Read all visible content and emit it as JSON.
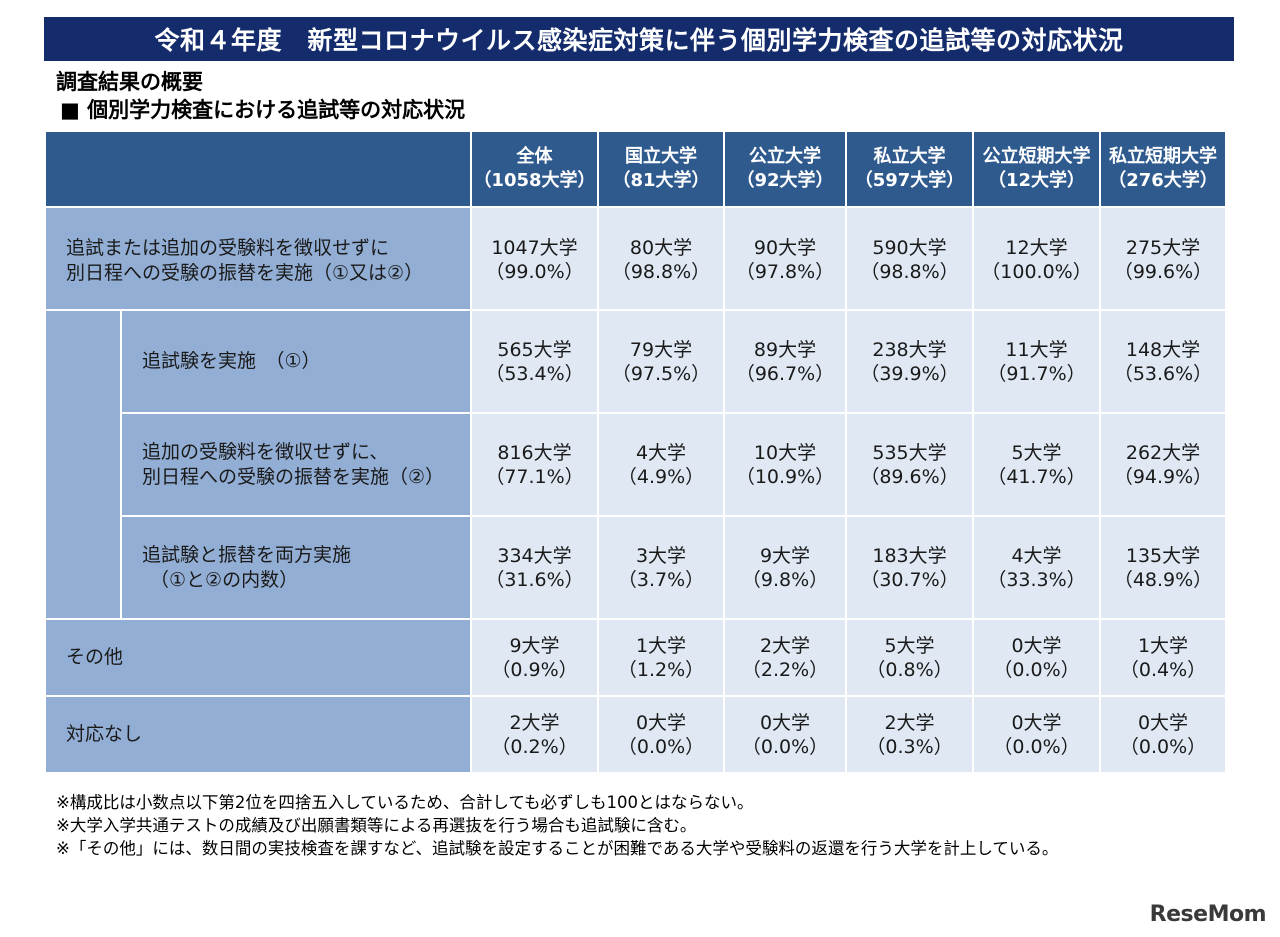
{
  "title": "令和４年度　新型コロナウイルス感染症対策に伴う個別学力検査の追試等の対応状況",
  "section_title": "調査結果の概要",
  "subsection_title": "■ 個別学力検査における追試等の対応状況",
  "table": {
    "headers": [
      {
        "name": "全体",
        "count": "（1058大学）"
      },
      {
        "name": "国立大学",
        "count": "（81大学）"
      },
      {
        "name": "公立大学",
        "count": "（92大学）"
      },
      {
        "name": "私立大学",
        "count": "（597大学）"
      },
      {
        "name": "公立短期大学",
        "count": "（12大学）"
      },
      {
        "name": "私立短期大学",
        "count": "（276大学）"
      }
    ],
    "rows": [
      {
        "label1": "追試または追加の受験料を徴収せずに",
        "label2": "別日程への受験の振替を実施（①又は②）",
        "cells": [
          [
            "1047大学",
            "（99.0%）"
          ],
          [
            "80大学",
            "（98.8%）"
          ],
          [
            "90大学",
            "（97.8%）"
          ],
          [
            "590大学",
            "（98.8%）"
          ],
          [
            "12大学",
            "（100.0%）"
          ],
          [
            "275大学",
            "（99.6%）"
          ]
        ]
      },
      {
        "label1": "追試験を実施　（①）",
        "label2": "",
        "cells": [
          [
            "565大学",
            "（53.4%）"
          ],
          [
            "79大学",
            "（97.5%）"
          ],
          [
            "89大学",
            "（96.7%）"
          ],
          [
            "238大学",
            "（39.9%）"
          ],
          [
            "11大学",
            "（91.7%）"
          ],
          [
            "148大学",
            "（53.6%）"
          ]
        ]
      },
      {
        "label1": "追加の受験料を徴収せずに、",
        "label2": "別日程への受験の振替を実施（②）",
        "cells": [
          [
            "816大学",
            "（77.1%）"
          ],
          [
            "4大学",
            "（4.9%）"
          ],
          [
            "10大学",
            "（10.9%）"
          ],
          [
            "535大学",
            "（89.6%）"
          ],
          [
            "5大学",
            "（41.7%）"
          ],
          [
            "262大学",
            "（94.9%）"
          ]
        ]
      },
      {
        "label1": "追試験と振替を両方実施",
        "label2": "（①と②の内数）",
        "cells": [
          [
            "334大学",
            "（31.6%）"
          ],
          [
            "3大学",
            "（3.7%）"
          ],
          [
            "9大学",
            "（9.8%）"
          ],
          [
            "183大学",
            "（30.7%）"
          ],
          [
            "4大学",
            "（33.3%）"
          ],
          [
            "135大学",
            "（48.9%）"
          ]
        ]
      },
      {
        "label1": "その他",
        "label2": "",
        "cells": [
          [
            "9大学",
            "（0.9%）"
          ],
          [
            "1大学",
            "（1.2%）"
          ],
          [
            "2大学",
            "（2.2%）"
          ],
          [
            "5大学",
            "（0.8%）"
          ],
          [
            "0大学",
            "（0.0%）"
          ],
          [
            "1大学",
            "（0.4%）"
          ]
        ]
      },
      {
        "label1": "対応なし",
        "label2": "",
        "cells": [
          [
            "2大学",
            "（0.2%）"
          ],
          [
            "0大学",
            "（0.0%）"
          ],
          [
            "0大学",
            "（0.0%）"
          ],
          [
            "2大学",
            "（0.3%）"
          ],
          [
            "0大学",
            "（0.0%）"
          ],
          [
            "0大学",
            "（0.0%）"
          ]
        ]
      }
    ]
  },
  "footnotes": [
    "※構成比は小数点以下第2位を四捨五入しているため、合計しても必ずしも100とはならない。",
    "※大学入学共通テストの成績及び出願書類等による再選抜を行う場合も追試験に含む。",
    "※「その他」には、数日間の実技検査を課すなど、追試験を設定することが困難である大学や受験料の返還を行う大学を計上している。"
  ],
  "logo": {
    "part1": "Rese",
    "part2": "Mom"
  }
}
